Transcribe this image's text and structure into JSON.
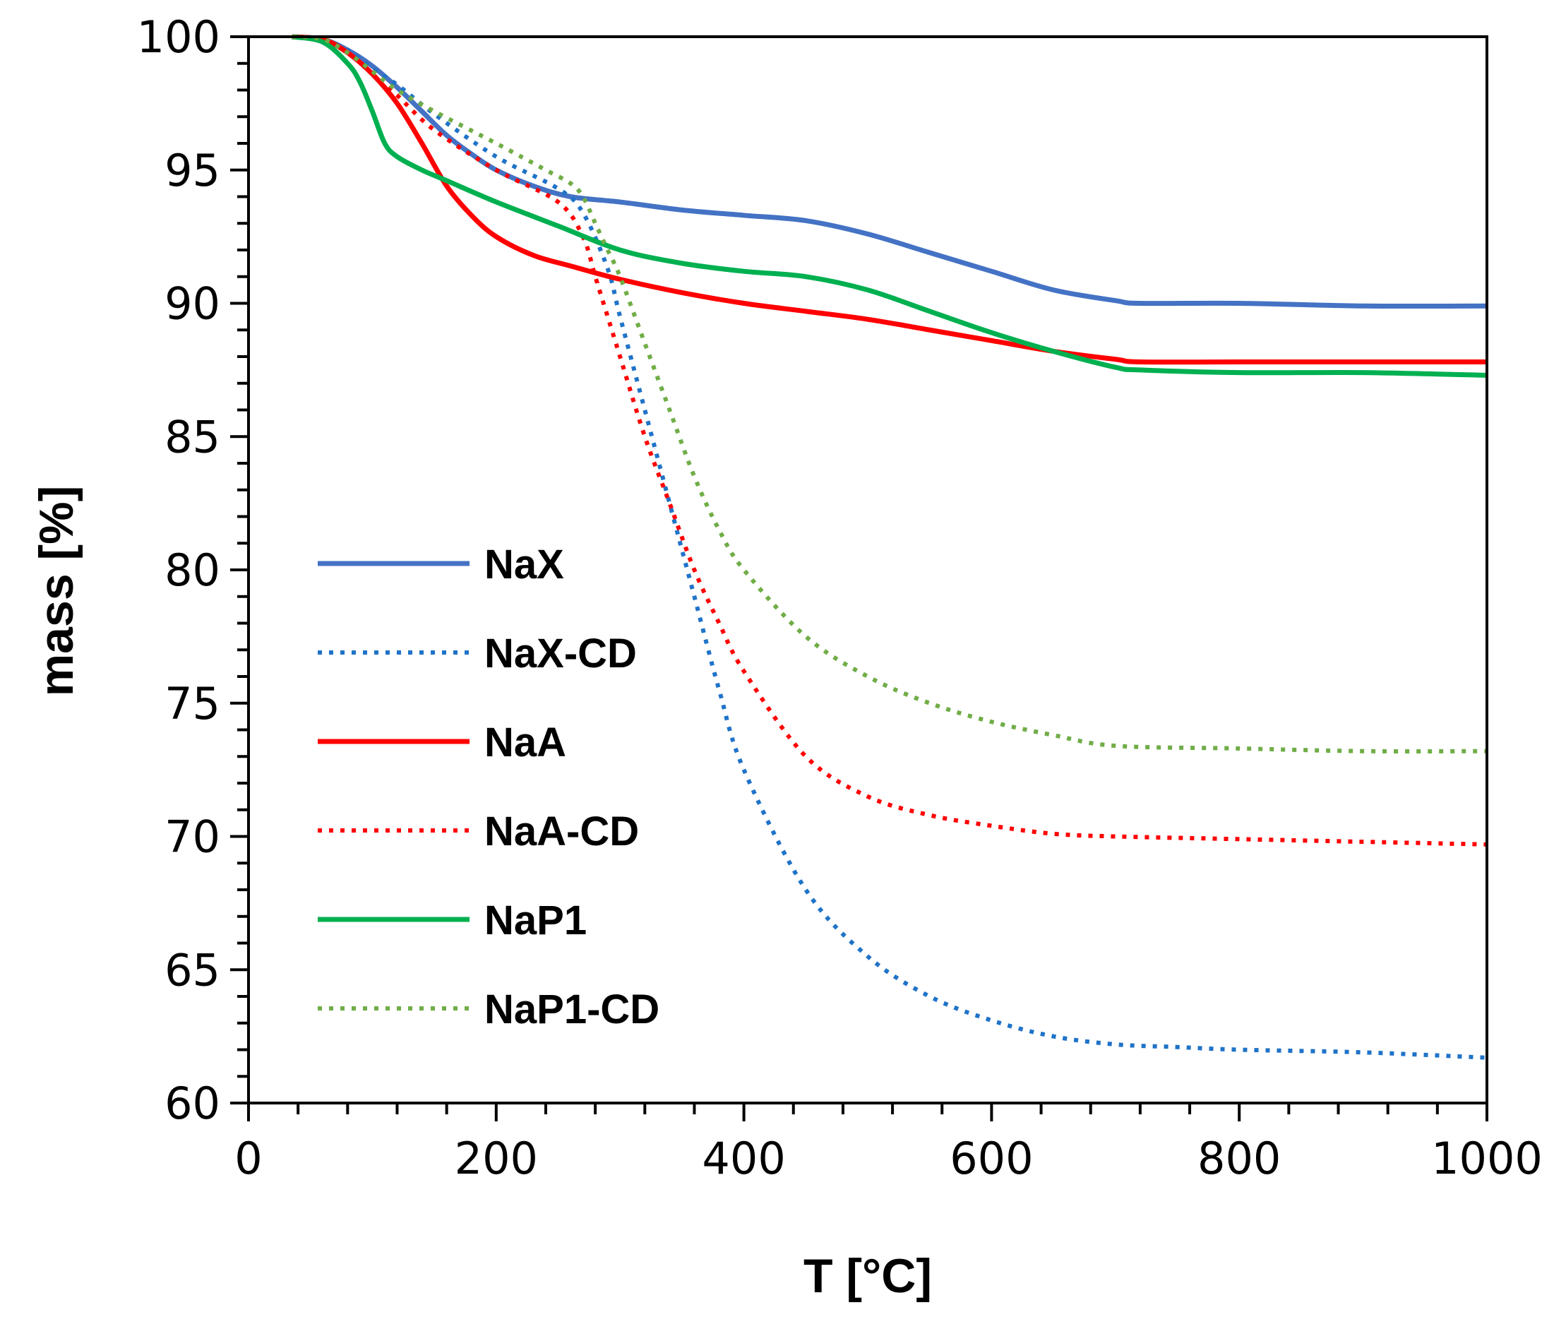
{
  "chart_data": {
    "type": "line",
    "title": "",
    "xlabel": "T [°C]",
    "ylabel": "mass [%]",
    "xlim": [
      0,
      1000
    ],
    "ylim": [
      60,
      100
    ],
    "x_ticks": [
      0,
      200,
      400,
      600,
      800,
      1000
    ],
    "y_ticks": [
      60,
      65,
      70,
      75,
      80,
      85,
      90,
      95,
      100
    ],
    "x_tick_labels": [
      "0",
      "200",
      "400",
      "600",
      "800",
      "1000"
    ],
    "y_tick_labels": [
      "60",
      "65",
      "70",
      "75",
      "80",
      "85",
      "90",
      "95",
      "100"
    ],
    "legend_position": "left-center",
    "series": [
      {
        "name": "NaX",
        "color": "#4472C4",
        "style": "solid",
        "x": [
          35,
          60,
          80,
          100,
          120,
          140,
          160,
          180,
          200,
          230,
          260,
          300,
          350,
          400,
          450,
          500,
          550,
          600,
          650,
          700,
          720,
          800,
          900,
          1000
        ],
        "y": [
          100,
          99.9,
          99.5,
          98.9,
          98.1,
          97.2,
          96.3,
          95.6,
          95.0,
          94.4,
          94.0,
          93.8,
          93.5,
          93.3,
          93.1,
          92.6,
          91.9,
          91.2,
          90.5,
          90.1,
          90.0,
          90.0,
          89.9,
          89.9
        ]
      },
      {
        "name": "NaX-CD",
        "color": "#1F73C8",
        "style": "dotted",
        "x": [
          35,
          60,
          80,
          100,
          120,
          150,
          200,
          250,
          270,
          290,
          300,
          320,
          340,
          360,
          380,
          400,
          450,
          500,
          550,
          600,
          650,
          700,
          750,
          800,
          900,
          1000
        ],
        "y": [
          100,
          99.9,
          99.5,
          98.8,
          98.2,
          97.1,
          95.5,
          94.3,
          93.4,
          91.3,
          89.5,
          86.0,
          82.5,
          79.0,
          75.5,
          72.5,
          68.0,
          65.5,
          64.0,
          63.1,
          62.5,
          62.2,
          62.1,
          62.0,
          61.9,
          61.7
        ]
      },
      {
        "name": "NaA",
        "color": "#FF0000",
        "style": "solid",
        "x": [
          35,
          60,
          80,
          100,
          120,
          140,
          160,
          180,
          200,
          230,
          260,
          300,
          350,
          400,
          450,
          500,
          550,
          600,
          650,
          700,
          720,
          800,
          900,
          1000
        ],
        "y": [
          100,
          99.9,
          99.4,
          98.6,
          97.5,
          96.0,
          94.4,
          93.3,
          92.5,
          91.8,
          91.4,
          90.9,
          90.4,
          90.0,
          89.7,
          89.4,
          89.0,
          88.6,
          88.2,
          87.9,
          87.8,
          87.8,
          87.8,
          87.8
        ]
      },
      {
        "name": "NaA-CD",
        "color": "#FF0000",
        "style": "dotted",
        "x": [
          35,
          60,
          80,
          100,
          120,
          150,
          200,
          250,
          270,
          280,
          290,
          300,
          320,
          340,
          360,
          380,
          400,
          450,
          500,
          550,
          600,
          650,
          700,
          800,
          900,
          1000
        ],
        "y": [
          100,
          99.9,
          99.4,
          98.6,
          97.8,
          96.5,
          95.0,
          93.8,
          92.5,
          91.0,
          89.5,
          88.0,
          85.0,
          82.5,
          80.0,
          78.0,
          76.2,
          73.0,
          71.5,
          70.8,
          70.4,
          70.1,
          70.0,
          69.9,
          69.8,
          69.7
        ]
      },
      {
        "name": "NaP1",
        "color": "#00B050",
        "style": "solid",
        "x": [
          35,
          60,
          80,
          90,
          100,
          110,
          120,
          140,
          160,
          200,
          250,
          300,
          350,
          400,
          450,
          500,
          550,
          600,
          650,
          700,
          720,
          800,
          900,
          1000
        ],
        "y": [
          100,
          99.8,
          99.0,
          98.3,
          97.2,
          96.0,
          95.5,
          95.0,
          94.6,
          93.8,
          92.9,
          92.0,
          91.5,
          91.2,
          91.0,
          90.5,
          89.7,
          88.9,
          88.2,
          87.6,
          87.5,
          87.4,
          87.4,
          87.3
        ]
      },
      {
        "name": "NaP1-CD",
        "color": "#70AD47",
        "style": "dotted",
        "x": [
          35,
          60,
          80,
          100,
          120,
          150,
          200,
          240,
          260,
          270,
          280,
          290,
          300,
          320,
          340,
          360,
          380,
          400,
          450,
          500,
          550,
          600,
          650,
          700,
          800,
          900,
          1000
        ],
        "y": [
          100,
          99.9,
          99.4,
          98.7,
          98.0,
          97.2,
          96.0,
          95.0,
          94.5,
          94.0,
          93.0,
          92.0,
          91.0,
          88.5,
          86.0,
          83.5,
          81.5,
          80.0,
          77.5,
          76.0,
          75.0,
          74.3,
          73.8,
          73.4,
          73.3,
          73.2,
          73.2
        ]
      }
    ]
  }
}
